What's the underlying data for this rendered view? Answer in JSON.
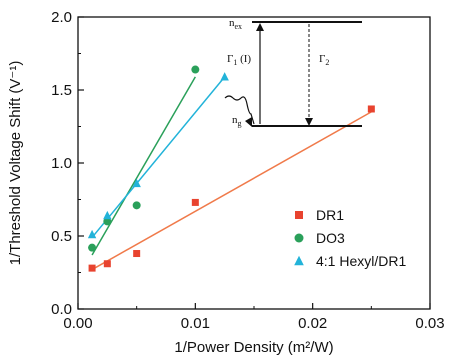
{
  "chart_data": {
    "type": "scatter",
    "xlabel": "1/Power Density (m²/W)",
    "ylabel": "1/Threshold Voltage Shift (V⁻¹)",
    "xlim": [
      0.0,
      0.03
    ],
    "ylim": [
      0.0,
      2.0
    ],
    "x_ticks": [
      "0.00",
      "0.01",
      "0.02",
      "0.03"
    ],
    "y_ticks": [
      "0.0",
      "0.5",
      "1.0",
      "1.5",
      "2.0"
    ],
    "grid": false,
    "legend_position": "lower-right",
    "series": [
      {
        "name": "DR1",
        "marker": "square",
        "color": "#e8432f",
        "line_color": "#f07a4a",
        "points": [
          [
            0.0012,
            0.28
          ],
          [
            0.0025,
            0.31
          ],
          [
            0.005,
            0.38
          ],
          [
            0.01,
            0.73
          ],
          [
            0.025,
            1.37
          ]
        ],
        "fit": [
          [
            0.0012,
            0.27
          ],
          [
            0.025,
            1.35
          ]
        ]
      },
      {
        "name": "DO3",
        "marker": "circle",
        "color": "#2aa05a",
        "line_color": "#2aa05a",
        "points": [
          [
            0.0012,
            0.42
          ],
          [
            0.0025,
            0.6
          ],
          [
            0.005,
            0.71
          ],
          [
            0.01,
            1.64
          ]
        ],
        "fit": [
          [
            0.0012,
            0.37
          ],
          [
            0.01,
            1.59
          ]
        ]
      },
      {
        "name": "4:1 Hexyl/DR1",
        "marker": "triangle",
        "color": "#22b3d9",
        "line_color": "#22b3d9",
        "points": [
          [
            0.0012,
            0.51
          ],
          [
            0.0025,
            0.64
          ],
          [
            0.005,
            0.86
          ],
          [
            0.0125,
            1.59
          ]
        ],
        "fit": [
          [
            0.0012,
            0.49
          ],
          [
            0.0125,
            1.59
          ]
        ]
      }
    ],
    "inset_diagram": {
      "upper_level": "n",
      "upper_sub": "ex",
      "lower_level": "n",
      "lower_sub": "g",
      "gamma1": "Γ",
      "gamma1_sub": "1",
      "gamma1_suffix": " (I)",
      "gamma2": "Γ",
      "gamma2_sub": "2"
    }
  }
}
